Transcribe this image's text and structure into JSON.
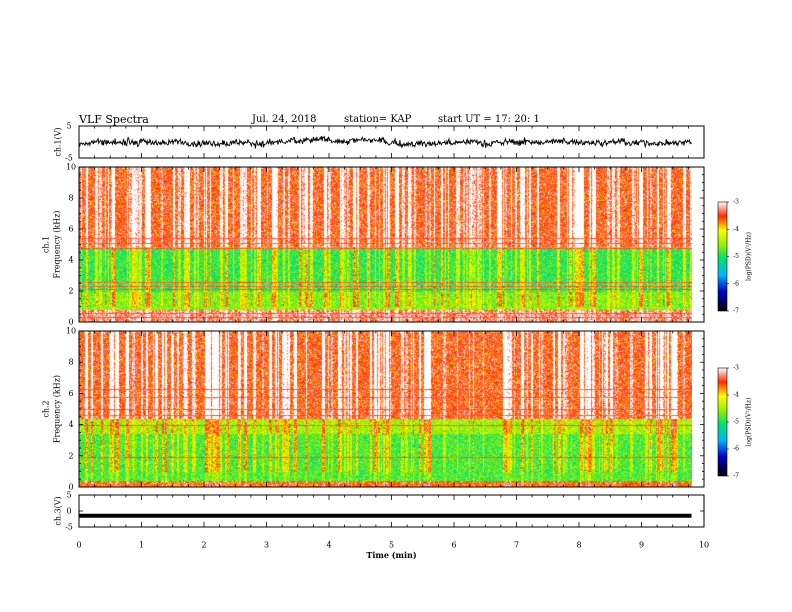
{
  "header": {
    "title": "VLF Spectra",
    "date": "Jul. 24, 2018",
    "station": "station= KAP",
    "start": "start UT =   17: 20: 1"
  },
  "chart_data": [
    {
      "type": "line",
      "panel": "ch1-waveform",
      "ylabel": "ch.1(V)",
      "ylim": [
        -5,
        5
      ],
      "yticks": [
        "5",
        "-5"
      ],
      "xlim": [
        0,
        10
      ],
      "note_series": "dense noisy waveform roughly between -3 and 3 V over 0-9.8 min"
    },
    {
      "type": "heatmap",
      "panel": "ch1-spectrogram",
      "ylabel": "ch.1 Frequency (kHz)",
      "ylim": [
        0,
        10
      ],
      "yticks": [
        "0",
        "2",
        "4",
        "6",
        "8",
        "10"
      ],
      "xlim": [
        0,
        10
      ],
      "data_extent_x": [
        0,
        9.8
      ],
      "colorbar": {
        "label": "log(PSD)(V²/Hz)",
        "range": [
          -7,
          -3
        ],
        "ticks": [
          "-3",
          "-4",
          "-5",
          "-6",
          "-7"
        ]
      },
      "bands": [
        {
          "freq_range": [
            0,
            0.8
          ],
          "level": -3.3
        },
        {
          "freq_range": [
            0.8,
            2.0
          ],
          "level": -4.6
        },
        {
          "freq_range": [
            2.0,
            4.9
          ],
          "level": -4.9
        },
        {
          "freq_range": [
            4.9,
            10
          ],
          "level": -3.5
        }
      ],
      "horizontal_lines_khz": [
        0.3,
        0.6,
        2.1,
        2.3,
        2.6,
        4.8,
        5.1,
        5.4
      ]
    },
    {
      "type": "heatmap",
      "panel": "ch2-spectrogram",
      "ylabel": "ch.2 Frequency (kHz)",
      "ylim": [
        0,
        10
      ],
      "yticks": [
        "0",
        "2",
        "4",
        "6",
        "8",
        "10"
      ],
      "xlim": [
        0,
        10
      ],
      "data_extent_x": [
        0,
        9.8
      ],
      "colorbar": {
        "label": "log(PSD)(V²/Hz)",
        "range": [
          -7,
          -3
        ],
        "ticks": [
          "-3",
          "-4",
          "-5",
          "-6",
          "-7"
        ]
      },
      "bands": [
        {
          "freq_range": [
            0,
            0.4
          ],
          "level": -3.6
        },
        {
          "freq_range": [
            0.4,
            3.4
          ],
          "level": -4.8
        },
        {
          "freq_range": [
            3.4,
            4.4
          ],
          "level": -4.5
        },
        {
          "freq_range": [
            4.4,
            10
          ],
          "level": -3.5
        }
      ],
      "horizontal_lines_khz": [
        1.9,
        4.0,
        4.6,
        5.0,
        5.8,
        6.3
      ]
    },
    {
      "type": "line",
      "panel": "ch3-waveform",
      "ylabel": "ch.3(V)",
      "ylim": [
        -5,
        5
      ],
      "yticks": [
        "5",
        "0",
        "-5"
      ],
      "xlim": [
        0,
        10
      ],
      "series": [
        {
          "values_constant": -1.5
        }
      ]
    }
  ],
  "xaxis": {
    "label": "Time (min)",
    "ticks": [
      "0",
      "1",
      "2",
      "3",
      "4",
      "5",
      "6",
      "7",
      "8",
      "9",
      "10"
    ]
  }
}
